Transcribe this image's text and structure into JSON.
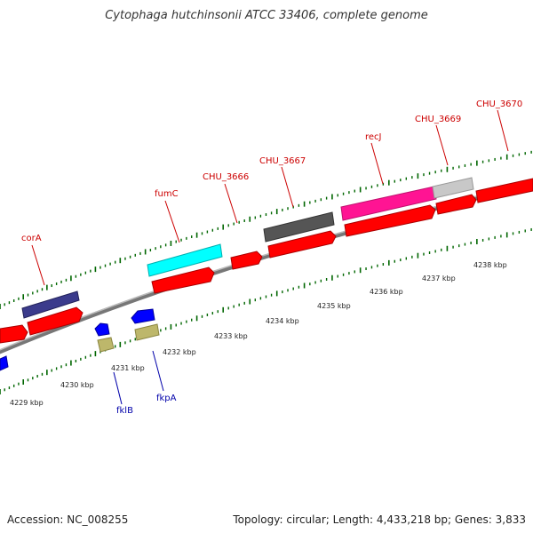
{
  "title": "Cytophaga hutchinsonii ATCC 33406, complete genome",
  "footer": {
    "accession": "Accession: NC_008255",
    "summary": "Topology: circular; Length: 4,433,218 bp; Genes: 3,833"
  },
  "colors": {
    "backbone": "#888888",
    "forward_gene": "#ff0000",
    "reverse_gene": "#0000ff",
    "gene_label_fwd": "#cc0000",
    "gene_label_rev": "#0000aa",
    "tick": "#006600",
    "corA": "#3b3b8c",
    "fumC": "#00ffff",
    "CHU_3667": "#555555",
    "recJ": "#ff1493",
    "CHU_3669": "#c8c8c8",
    "fkpA": "#bdb76b"
  },
  "scale_labels": [
    "4229 kbp",
    "4230 kbp",
    "4231 kbp",
    "4232 kbp",
    "4233 kbp",
    "4234 kbp",
    "4235 kbp",
    "4236 kbp",
    "4237 kbp",
    "4238 kbp"
  ],
  "gene_labels_top": [
    "corA",
    "fumC",
    "CHU_3666",
    "CHU_3667",
    "recJ",
    "CHU_3669",
    "CHU_3670"
  ],
  "gene_labels_bottom": [
    "fklB",
    "fkpA"
  ]
}
